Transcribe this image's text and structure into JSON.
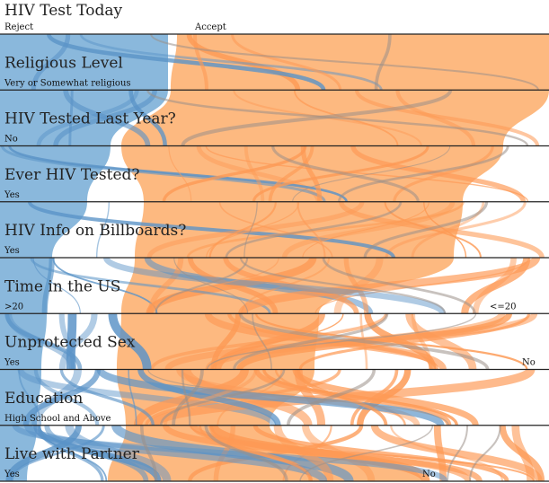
{
  "chart_data": {
    "type": "parallel-sets",
    "colors": {
      "Reject": "#8ab8dc",
      "Accept": "#fdb980",
      "reject_dark": "#5a93c7",
      "accept_dark": "#fd9a55"
    },
    "color_dimension": "HIV Test Today",
    "dimensions": [
      {
        "name": "HIV Test Today",
        "categories": [
          {
            "label": "Reject",
            "share": 0.31
          },
          {
            "label": "Accept",
            "share": 0.69
          }
        ]
      },
      {
        "name": "Religious Level",
        "categories": [
          {
            "label": "Very or Somewhat religious",
            "share": 1.0
          }
        ]
      },
      {
        "name": "HIV Tested Last Year?",
        "categories": [
          {
            "label": "No",
            "share": 0.93
          },
          {
            "label": "",
            "share": 0.07
          }
        ]
      },
      {
        "name": "Ever HIV Tested?",
        "categories": [
          {
            "label": "Yes",
            "share": 0.86
          },
          {
            "label": "",
            "share": 0.14
          }
        ]
      },
      {
        "name": "HIV Info on Billboards?",
        "categories": [
          {
            "label": "Yes",
            "share": 0.93
          },
          {
            "label": "",
            "share": 0.07
          }
        ]
      },
      {
        "name": "Time in the US",
        "categories": [
          {
            "label": ">20",
            "share": 0.88
          },
          {
            "label": "<=20",
            "share": 0.12
          }
        ]
      },
      {
        "name": "Unprotected Sex",
        "categories": [
          {
            "label": "Yes",
            "share": 0.94
          },
          {
            "label": "No",
            "share": 0.06
          }
        ]
      },
      {
        "name": "Education",
        "categories": [
          {
            "label": "High School and Above",
            "share": 1.0
          }
        ]
      },
      {
        "name": "Live with Partner",
        "categories": [
          {
            "label": "Yes",
            "share": 0.76
          },
          {
            "label": "No",
            "share": 0.24
          }
        ]
      }
    ]
  }
}
